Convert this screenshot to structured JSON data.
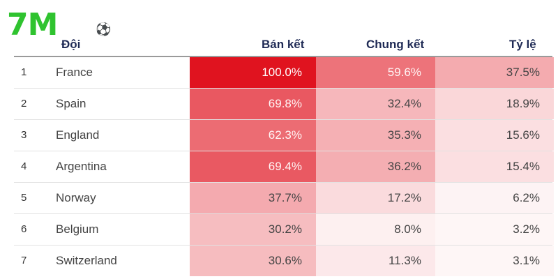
{
  "logo": {
    "text": "7M",
    "color": "#2fc32f"
  },
  "columns": {
    "team": "Đội",
    "semifinal": "Bán kết",
    "final": "Chung kết",
    "winner": "Tỷ lệ"
  },
  "rows": [
    {
      "rank": "1",
      "team": "France",
      "semi": "100.0%",
      "final": "59.6%",
      "win": "37.5%"
    },
    {
      "rank": "2",
      "team": "Spain",
      "semi": "69.8%",
      "final": "32.4%",
      "win": "18.9%"
    },
    {
      "rank": "3",
      "team": "England",
      "semi": "62.3%",
      "final": "35.3%",
      "win": "15.6%"
    },
    {
      "rank": "4",
      "team": "Argentina",
      "semi": "69.4%",
      "final": "36.2%",
      "win": "15.4%"
    },
    {
      "rank": "5",
      "team": "Norway",
      "semi": "37.7%",
      "final": "17.2%",
      "win": "6.2%"
    },
    {
      "rank": "6",
      "team": "Belgium",
      "semi": "30.2%",
      "final": "8.0%",
      "win": "3.2%"
    },
    {
      "rank": "7",
      "team": "Switzerland",
      "semi": "30.6%",
      "final": "11.3%",
      "win": "3.1%"
    }
  ],
  "heat": {
    "max_color": "#e0131f",
    "min_color": "#ffffff"
  }
}
